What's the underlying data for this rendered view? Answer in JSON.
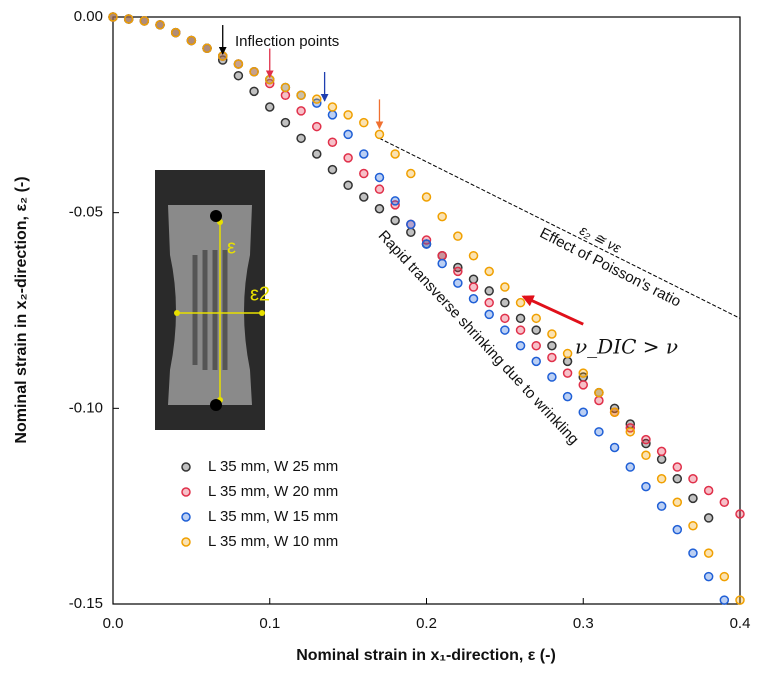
{
  "chart_data": {
    "type": "scatter",
    "xlabel": "Nominal strain in x₁-direction, ε (-)",
    "ylabel": "Nominal strain in x₂-direction, ε₂ (-)",
    "x": [
      0,
      0.01,
      0.02,
      0.03,
      0.04,
      0.05,
      0.06,
      0.07,
      0.08,
      0.09,
      0.1,
      0.11,
      0.12,
      0.13,
      0.14,
      0.15,
      0.16,
      0.17,
      0.18,
      0.19,
      0.2,
      0.21,
      0.22,
      0.23,
      0.24,
      0.25,
      0.26,
      0.27,
      0.28,
      0.29,
      0.3,
      0.31,
      0.32,
      0.33,
      0.34,
      0.35,
      0.36,
      0.37,
      0.38,
      0.39,
      0.4
    ],
    "series": [
      {
        "name": "L 35 mm, W 25 mm",
        "color": "#333333",
        "values": [
          0,
          -0.0005,
          -0.001,
          -0.002,
          -0.004,
          -0.006,
          -0.008,
          -0.011,
          -0.015,
          -0.019,
          -0.023,
          -0.027,
          -0.031,
          -0.035,
          -0.039,
          -0.043,
          -0.046,
          -0.049,
          -0.052,
          -0.055,
          -0.058,
          -0.061,
          -0.064,
          -0.067,
          -0.07,
          -0.073,
          -0.077,
          -0.08,
          -0.084,
          -0.088,
          -0.092,
          -0.096,
          -0.1,
          -0.104,
          -0.109,
          -0.113,
          -0.118,
          -0.123,
          -0.128,
          null,
          null
        ]
      },
      {
        "name": "L 35 mm, W 20 mm",
        "color": "#e0304a",
        "values": [
          0,
          -0.0005,
          -0.001,
          -0.002,
          -0.004,
          -0.006,
          -0.008,
          -0.01,
          -0.012,
          -0.014,
          -0.017,
          -0.02,
          -0.024,
          -0.028,
          -0.032,
          -0.036,
          -0.04,
          -0.044,
          -0.048,
          -0.053,
          -0.057,
          -0.061,
          -0.065,
          -0.069,
          -0.073,
          -0.077,
          -0.08,
          -0.084,
          -0.087,
          -0.091,
          -0.094,
          -0.098,
          -0.101,
          -0.105,
          -0.108,
          -0.111,
          -0.115,
          -0.118,
          -0.121,
          -0.124,
          -0.127
        ]
      },
      {
        "name": "L 35 mm, W 15 mm",
        "color": "#1f5fd6",
        "values": [
          0,
          -0.0005,
          -0.001,
          -0.002,
          -0.004,
          -0.006,
          -0.008,
          -0.01,
          -0.012,
          -0.014,
          -0.016,
          -0.018,
          -0.02,
          -0.022,
          -0.025,
          -0.03,
          -0.035,
          -0.041,
          -0.047,
          -0.053,
          -0.058,
          -0.063,
          -0.068,
          -0.072,
          -0.076,
          -0.08,
          -0.084,
          -0.088,
          -0.092,
          -0.097,
          -0.101,
          -0.106,
          -0.11,
          -0.115,
          -0.12,
          -0.125,
          -0.131,
          -0.137,
          -0.143,
          -0.149,
          null
        ]
      },
      {
        "name": "L 35 mm, W 10 mm",
        "color": "#f0a000",
        "values": [
          0,
          -0.0005,
          -0.001,
          -0.002,
          -0.004,
          -0.006,
          -0.008,
          -0.01,
          -0.012,
          -0.014,
          -0.016,
          -0.018,
          -0.02,
          -0.021,
          -0.023,
          -0.025,
          -0.027,
          -0.03,
          -0.035,
          -0.04,
          -0.046,
          -0.051,
          -0.056,
          -0.061,
          -0.065,
          -0.069,
          -0.073,
          -0.077,
          -0.081,
          -0.086,
          -0.091,
          -0.096,
          -0.101,
          -0.106,
          -0.112,
          -0.118,
          -0.124,
          -0.13,
          -0.137,
          -0.143,
          -0.149
        ]
      }
    ],
    "xlim": [
      0,
      0.4
    ],
    "ylim": [
      -0.15,
      0
    ],
    "xticks": [
      {
        "value": 0,
        "label": "0.0"
      },
      0.1,
      0.2,
      0.3,
      0.4
    ],
    "yticks": [
      {
        "value": 0,
        "label": "0.00"
      },
      -0.05,
      {
        "value": -0.1,
        "label": "-0.10"
      },
      -0.15
    ],
    "grid": false,
    "legend": "lower left",
    "annotations": {
      "inflection_label": "Inflection points",
      "inflection_arrows": [
        {
          "x": 0.07,
          "y": -0.011,
          "color": "#000000"
        },
        {
          "x": 0.1,
          "y": -0.017,
          "color": "#e0304a"
        },
        {
          "x": 0.135,
          "y": -0.023,
          "color": "#1f3fb0"
        },
        {
          "x": 0.17,
          "y": -0.03,
          "color": "#f07030"
        }
      ],
      "reference_line": {
        "x": [
          0.17,
          0.4
        ],
        "y": [
          -0.031,
          -0.077
        ]
      },
      "reference_formula": "ε₂ ≅ νε",
      "reference_label": "Effect of Poisson's ratio",
      "dic_arrow": {
        "x": [
          0.3,
          0.262
        ],
        "y": [
          -0.0785,
          -0.0715
        ]
      },
      "dic_label": "ν_DIC > ν",
      "wrinkle_label": "Rapid transverse shrinking due to wrinkling",
      "inset_labels": [
        "ε",
        "ε2"
      ]
    }
  }
}
